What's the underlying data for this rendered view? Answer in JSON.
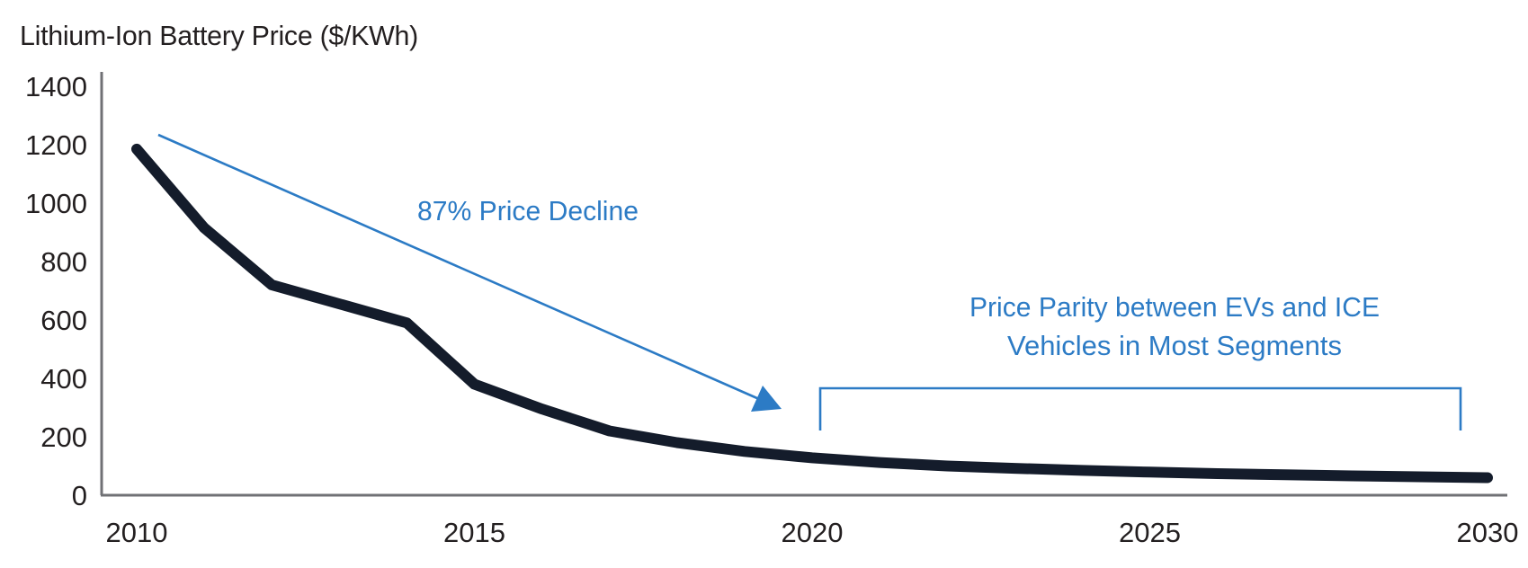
{
  "title": "Lithium-Ion Battery Price ($/KWh)",
  "annotations": {
    "decline": {
      "label": "87% Price Decline"
    },
    "parity": {
      "line1": "Price Parity between EVs and ICE",
      "line2": "Vehicles in Most Segments"
    }
  },
  "colors": {
    "accent_blue": "#2c7bc5",
    "curve_dark": "#141c2b",
    "axis_gray": "#707175",
    "text_dark": "#231f20",
    "background": "#ffffff"
  },
  "chart_data": {
    "type": "line",
    "title": "Lithium-Ion Battery Price ($/KWh)",
    "xlabel": "",
    "ylabel": "Lithium-Ion Battery Price ($/KWh)",
    "xlim": [
      2010,
      2030
    ],
    "ylim": [
      0,
      1400
    ],
    "xticks": [
      2010,
      2015,
      2020,
      2025,
      2030
    ],
    "yticks": [
      0,
      200,
      400,
      600,
      800,
      1000,
      1200,
      1400
    ],
    "grid": false,
    "legend_position": "none",
    "series": [
      {
        "name": "Lithium-ion battery price ($/KWh)",
        "x": [
          2010,
          2011,
          2012,
          2013,
          2014,
          2015,
          2016,
          2017,
          2018,
          2019,
          2020,
          2021,
          2022,
          2023,
          2024,
          2025,
          2026,
          2027,
          2028,
          2029,
          2030
        ],
        "values": [
          1185,
          915,
          720,
          655,
          590,
          380,
          295,
          220,
          180,
          150,
          128,
          112,
          100,
          92,
          85,
          79,
          74,
          70,
          66,
          63,
          60
        ]
      }
    ],
    "annotations": [
      "87% Price Decline (from 2010 level to ~2020 level, diagonal arrow)",
      "Price Parity between EVs and ICE Vehicles in Most Segments (bracket spanning 2020-2030)"
    ]
  }
}
